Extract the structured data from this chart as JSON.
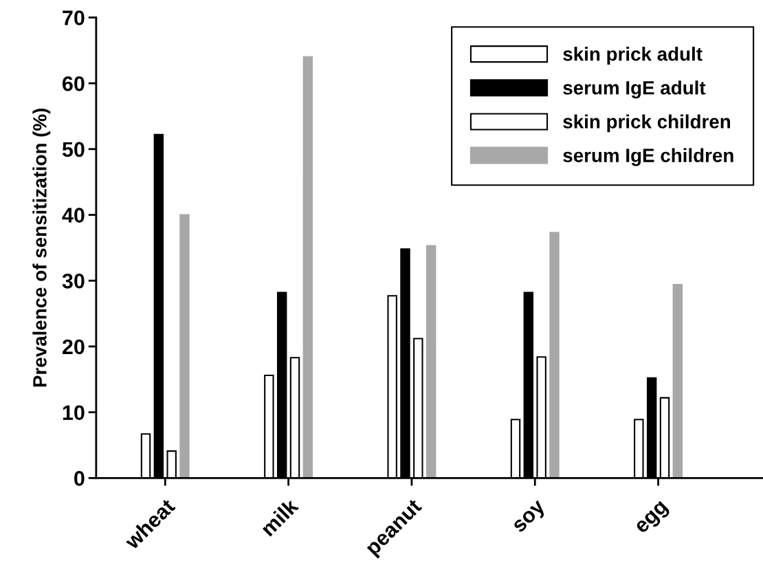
{
  "chart_data": {
    "type": "bar",
    "ylabel": "Prevalence of sensitization (%)",
    "categories": [
      "wheat",
      "milk",
      "peanut",
      "soy",
      "egg"
    ],
    "series": [
      {
        "name": "skin prick adult",
        "color": "#ffffff",
        "values": [
          6.7,
          15.6,
          27.7,
          8.9,
          8.9
        ]
      },
      {
        "name": "serum IgE adult",
        "color": "#000000",
        "values": [
          52.2,
          28.2,
          34.8,
          28.2,
          15.2
        ]
      },
      {
        "name": "skin prick children",
        "color": "#ffffff",
        "values": [
          4.1,
          18.3,
          21.2,
          18.4,
          12.2
        ]
      },
      {
        "name": "serum IgE children",
        "color": "#a8a8a8",
        "values": [
          40.0,
          64.0,
          35.3,
          37.3,
          29.4
        ]
      }
    ],
    "ylim": [
      0,
      70
    ],
    "yticks": [
      0,
      10,
      20,
      30,
      40,
      50,
      60,
      70
    ],
    "grid": false,
    "legend": "top right"
  }
}
